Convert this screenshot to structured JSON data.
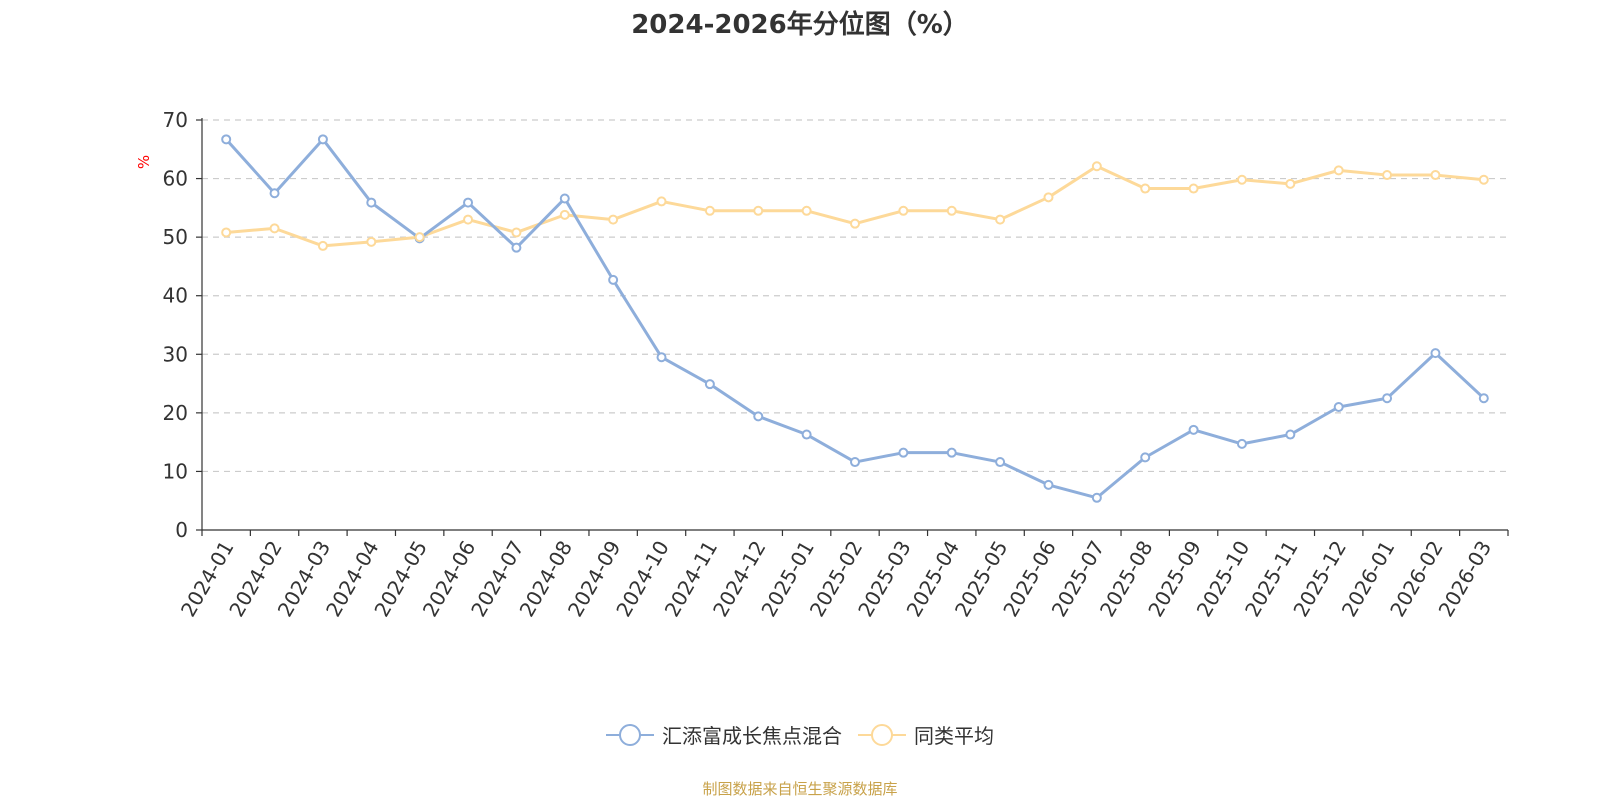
{
  "title": "2024-2026年分位图（%）",
  "source": "制图数据来自恒生聚源数据库",
  "chart_data": {
    "type": "line",
    "ylabel": "%",
    "ylim": [
      0,
      70
    ],
    "yticks": [
      0,
      10,
      20,
      30,
      40,
      50,
      60,
      70
    ],
    "grid": true,
    "legend_position": "bottom",
    "categories": [
      "2024-01",
      "2024-02",
      "2024-03",
      "2024-04",
      "2024-05",
      "2024-06",
      "2024-07",
      "2024-08",
      "2024-09",
      "2024-10",
      "2024-11",
      "2024-12",
      "2025-01",
      "2025-02",
      "2025-03",
      "2025-04",
      "2025-05",
      "2025-06",
      "2025-07",
      "2025-08",
      "2025-09",
      "2025-10",
      "2025-11",
      "2025-12",
      "2026-01",
      "2026-02",
      "2026-03"
    ],
    "series": [
      {
        "name": "汇添富成长焦点混合",
        "color": "#8eaedb",
        "values": [
          66.7,
          57.5,
          66.7,
          55.9,
          49.8,
          55.9,
          48.2,
          56.6,
          42.7,
          29.5,
          24.9,
          19.4,
          16.3,
          11.6,
          13.2,
          13.2,
          11.6,
          7.7,
          5.5,
          12.4,
          17.1,
          14.7,
          16.3,
          21.0,
          22.5,
          30.2,
          22.5
        ]
      },
      {
        "name": "同类平均",
        "color": "#fdd999",
        "values": [
          50.8,
          51.5,
          48.5,
          49.2,
          50.0,
          53.0,
          50.8,
          53.8,
          53.0,
          56.1,
          54.5,
          54.5,
          54.5,
          52.3,
          54.5,
          54.5,
          53.0,
          56.8,
          62.1,
          58.3,
          58.3,
          59.8,
          59.1,
          61.4,
          60.6,
          60.6,
          59.8
        ]
      }
    ]
  }
}
